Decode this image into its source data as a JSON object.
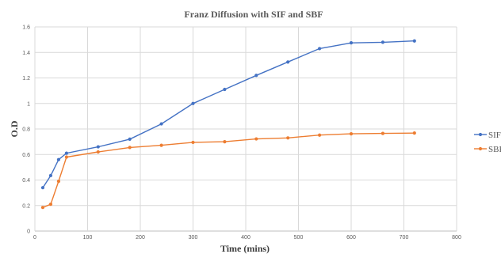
{
  "chart_data": {
    "type": "line",
    "title": "Franz Diffusion  with  SIF and SBF",
    "xlabel": "Time (mins)",
    "ylabel": "O.D",
    "xlim": [
      0,
      800
    ],
    "ylim": [
      0,
      1.6
    ],
    "xticks": [
      "0",
      "100",
      "200",
      "300",
      "400",
      "500",
      "600",
      "700",
      "800"
    ],
    "yticks": [
      "0",
      "0.2",
      "0.4",
      "0.6",
      "0.8",
      "1",
      "1.2",
      "1.4",
      "1.6"
    ],
    "grid": true,
    "legend": "right",
    "x": [
      15,
      30,
      45,
      60,
      120,
      180,
      240,
      300,
      360,
      420,
      480,
      540,
      600,
      660,
      720
    ],
    "series": [
      {
        "name": "SIF",
        "color": "#4472c4",
        "values": [
          0.34,
          0.435,
          0.56,
          0.61,
          0.66,
          0.72,
          0.84,
          1.0,
          1.11,
          1.22,
          1.325,
          1.43,
          1.475,
          1.48,
          1.49
        ]
      },
      {
        "name": "SBF",
        "color": "#ed7d31",
        "values": [
          0.185,
          0.21,
          0.39,
          0.58,
          0.62,
          0.655,
          0.672,
          0.695,
          0.7,
          0.722,
          0.73,
          0.752,
          0.762,
          0.765,
          0.768
        ]
      }
    ]
  }
}
